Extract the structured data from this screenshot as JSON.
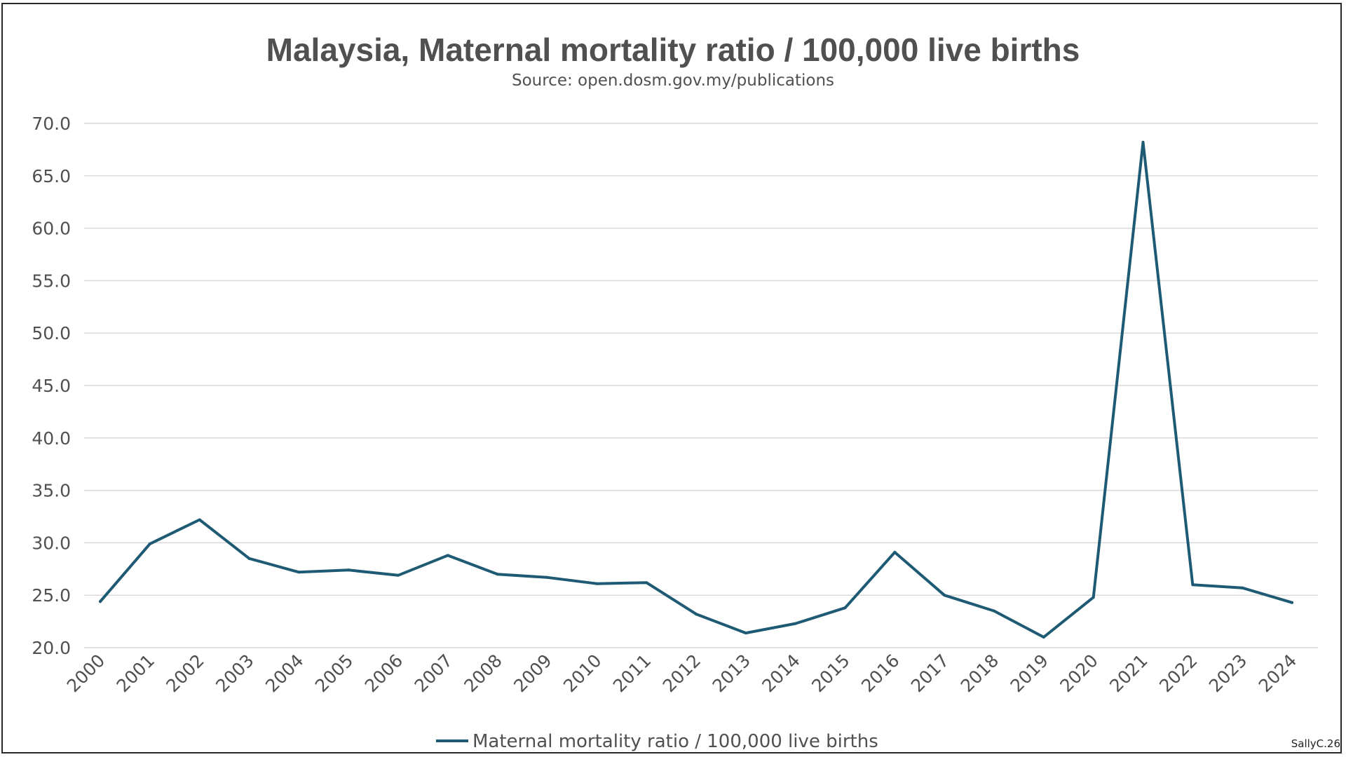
{
  "chart_data": {
    "type": "line",
    "title": "Malaysia, Maternal mortality ratio / 100,000 live births",
    "subtitle": "Source: open.dosm.gov.my/publications",
    "xlabel": "",
    "ylabel": "",
    "ylim": [
      20.0,
      70.0
    ],
    "y_ticks": [
      "20.0",
      "25.0",
      "30.0",
      "35.0",
      "40.0",
      "45.0",
      "50.0",
      "55.0",
      "60.0",
      "65.0",
      "70.0"
    ],
    "grid": "horizontal",
    "legend_position": "bottom-center",
    "categories": [
      "2000",
      "2001",
      "2002",
      "2003",
      "2004",
      "2005",
      "2006",
      "2007",
      "2008",
      "2009",
      "2010",
      "2011",
      "2012",
      "2013",
      "2014",
      "2015",
      "2016",
      "2017",
      "2018",
      "2019",
      "2020",
      "2021",
      "2022",
      "2023",
      "2024"
    ],
    "series": [
      {
        "name": "Maternal mortality ratio / 100,000 live births",
        "color": "#1f5a74",
        "values": [
          24.4,
          29.9,
          32.2,
          28.5,
          27.2,
          27.4,
          26.9,
          28.8,
          27.0,
          26.7,
          26.1,
          26.2,
          23.2,
          21.4,
          22.3,
          23.8,
          29.1,
          25.0,
          23.5,
          21.0,
          24.8,
          68.2,
          26.0,
          25.7,
          24.3
        ]
      }
    ]
  },
  "colors": {
    "line": "#1f5a74",
    "grid": "#d9d9d9",
    "text": "#505050"
  },
  "watermark": "SallyC.26"
}
